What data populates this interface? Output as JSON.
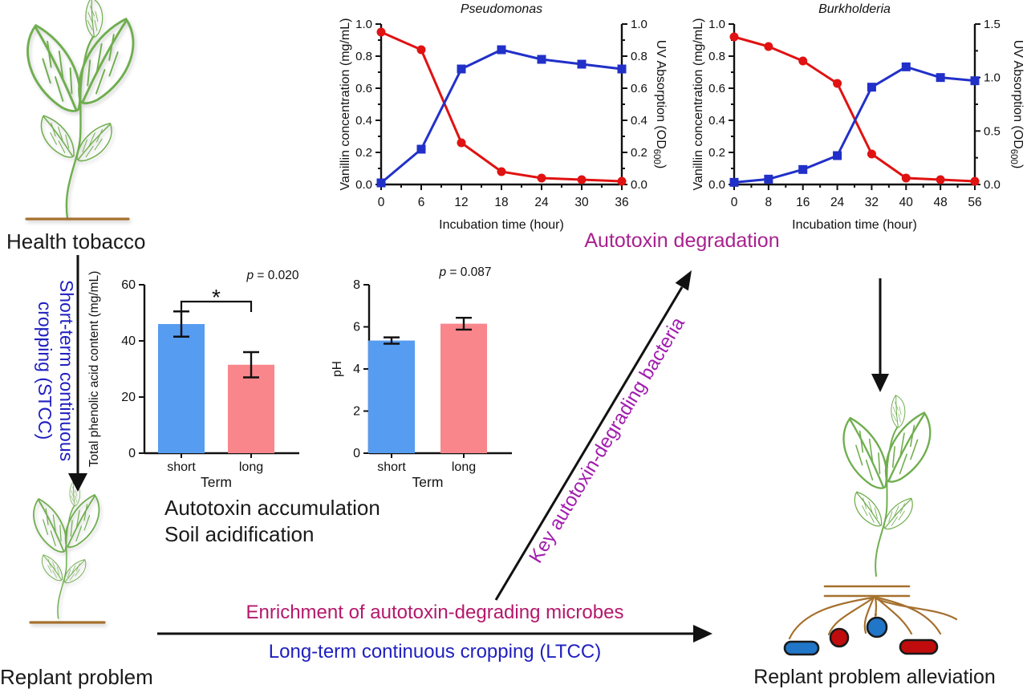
{
  "labels": {
    "health_tobacco": "Health tobacco",
    "replant_problem": "Replant problem",
    "replant_problem_alleviation": "Replant problem alleviation",
    "stcc": "Short-term continuous cropping (STCC)",
    "ltcc": "Long-term continuous cropping (LTCC)",
    "autotoxin_degradation": "Autotoxin degradation",
    "accumulation_block": "Autotoxin accumulation\nSoil acidification",
    "enrichment": "Enrichment of autotoxin-degrading microbes",
    "key_bacteria": "Key autotoxin-degrading bacteria"
  },
  "colors": {
    "plant_green": "#6FAE4E",
    "soil_brown": "#A5702E",
    "arrow_black": "#111111",
    "text_black": "#1A1A1A",
    "text_blue": "#2020C0",
    "magenta_degradation": "#A8218F",
    "magenta_enrichment": "#B4186B",
    "magenta_bacteria": "#A21CAF",
    "bacteria_blue": "#2176C8",
    "bacteria_red": "#C00C0C",
    "line_red": "#E01212",
    "line_blue": "#2130C8",
    "bar_blue": "#569CF0",
    "bar_red": "#F8868B"
  },
  "chart_data": [
    {
      "id": "pseudomonas",
      "type": "line",
      "title": "Pseudomonas",
      "xlabel": "Incubation time (hour)",
      "ylabel_left": "Vanillin concentration (mg/mL)",
      "ylabel_right": "UV Absorption (OD_{600})",
      "x": [
        0,
        6,
        12,
        18,
        24,
        30,
        36
      ],
      "xlim": [
        0,
        36
      ],
      "ylim_left": [
        0,
        1.0
      ],
      "ylim_right": [
        0,
        1.0
      ],
      "yticks_left": [
        0.0,
        0.2,
        0.4,
        0.6,
        0.8,
        1.0
      ],
      "yticks_right": [
        0.0,
        0.2,
        0.4,
        0.6,
        0.8,
        1.0
      ],
      "tick_decimals": 1,
      "series": [
        {
          "name": "Vanillin concentration",
          "axis": "left",
          "color": "#E01212",
          "marker": "circle",
          "values": [
            0.95,
            0.84,
            0.26,
            0.08,
            0.04,
            0.03,
            0.02
          ]
        },
        {
          "name": "UV Absorption (OD600)",
          "axis": "right",
          "color": "#2130C8",
          "marker": "square",
          "values": [
            0.01,
            0.22,
            0.72,
            0.84,
            0.78,
            0.75,
            0.72
          ]
        }
      ]
    },
    {
      "id": "burkholderia",
      "type": "line",
      "title": "Burkholderia",
      "xlabel": "Incubation time (hour)",
      "ylabel_left": "Vanillin concentration (mg/mL)",
      "ylabel_right": "UV Absorption (OD_{600})",
      "x": [
        0,
        8,
        16,
        24,
        32,
        40,
        48,
        56
      ],
      "xlim": [
        0,
        56
      ],
      "ylim_left": [
        0,
        1.0
      ],
      "ylim_right": [
        0,
        1.5
      ],
      "yticks_left": [
        0.0,
        0.2,
        0.4,
        0.6,
        0.8,
        1.0
      ],
      "yticks_right": [
        0.0,
        0.5,
        1.0,
        1.5
      ],
      "tick_decimals": 1,
      "series": [
        {
          "name": "Vanillin concentration",
          "axis": "left",
          "color": "#E01212",
          "marker": "circle",
          "values": [
            0.92,
            0.86,
            0.77,
            0.63,
            0.19,
            0.04,
            0.03,
            0.02
          ]
        },
        {
          "name": "UV Absorption (OD600)",
          "axis": "right",
          "color": "#2130C8",
          "marker": "square",
          "values": [
            0.02,
            0.05,
            0.14,
            0.27,
            0.91,
            1.1,
            1.0,
            0.97
          ]
        }
      ]
    },
    {
      "id": "phenolic",
      "type": "bar",
      "categories": [
        "short",
        "long"
      ],
      "values": [
        46,
        31.5
      ],
      "errors": [
        4.5,
        4.5
      ],
      "bar_colors": [
        "#569CF0",
        "#F8868B"
      ],
      "ylabel": "Total phenolic acid content (mg/mL)",
      "xlabel": "Term",
      "ylim": [
        0,
        60
      ],
      "yticks": [
        0,
        20,
        40,
        60
      ],
      "tick_decimals": 0,
      "p_value": "0.020",
      "significance": "*"
    },
    {
      "id": "ph",
      "type": "bar",
      "categories": [
        "short",
        "long"
      ],
      "values": [
        5.35,
        6.15
      ],
      "errors": [
        0.15,
        0.28
      ],
      "bar_colors": [
        "#569CF0",
        "#F8868B"
      ],
      "ylabel": "pH",
      "xlabel": "Term",
      "ylim": [
        0,
        8
      ],
      "yticks": [
        0,
        2,
        4,
        6,
        8
      ],
      "tick_decimals": 0,
      "p_value": "0.087"
    }
  ]
}
